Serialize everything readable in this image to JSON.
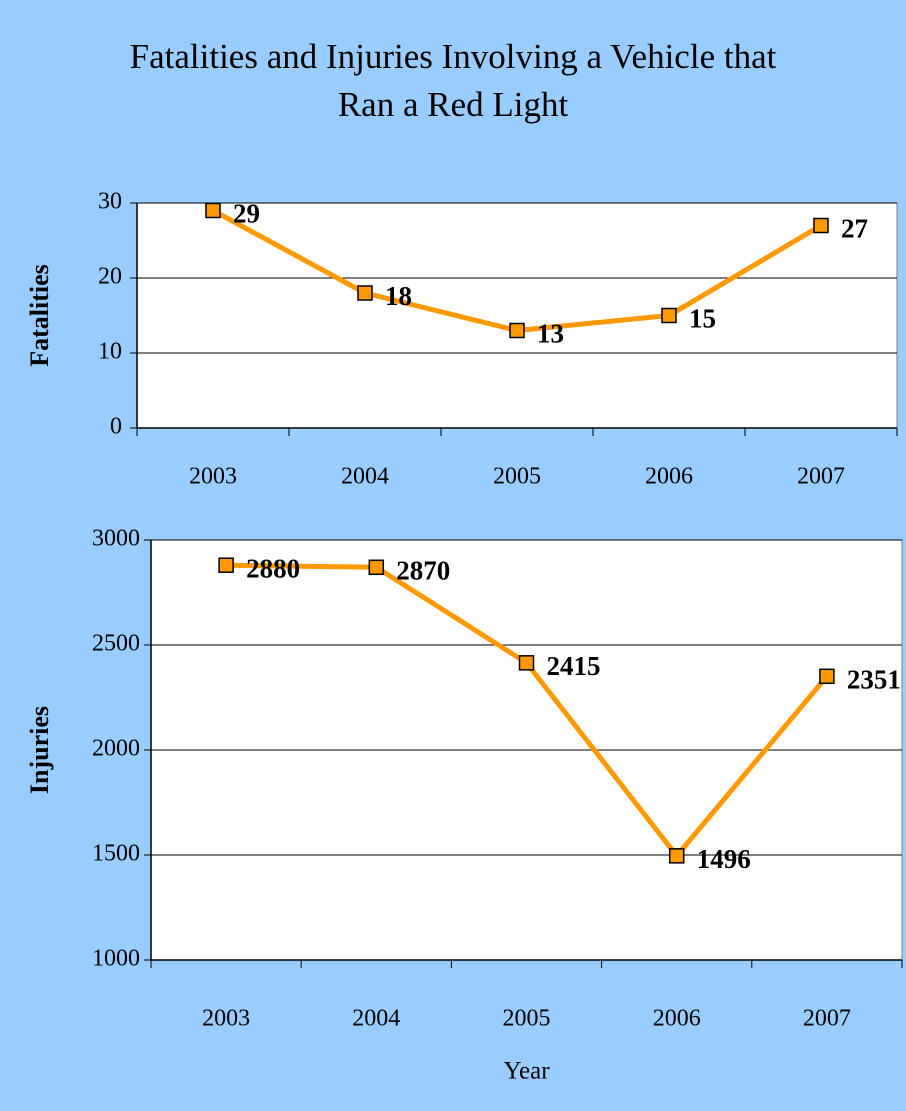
{
  "title": "Fatalities and Injuries Involving a Vehicle that Ran a Red Light",
  "chart_data": [
    {
      "type": "line",
      "ylabel": "Fatalities",
      "categories": [
        "2003",
        "2004",
        "2005",
        "2006",
        "2007"
      ],
      "values": [
        29,
        18,
        13,
        15,
        27
      ],
      "color": "#ff9900",
      "ylim": [
        0,
        30
      ],
      "yticks": [
        0,
        10,
        20,
        30
      ],
      "grid": true
    },
    {
      "type": "line",
      "ylabel": "Injuries",
      "xlabel": "Year",
      "categories": [
        "2003",
        "2004",
        "2005",
        "2006",
        "2007"
      ],
      "values": [
        2880,
        2870,
        2415,
        1496,
        2351
      ],
      "color": "#ff9900",
      "ylim": [
        1000,
        3000
      ],
      "yticks": [
        1000,
        1500,
        2000,
        2500,
        3000
      ],
      "grid": true
    }
  ]
}
